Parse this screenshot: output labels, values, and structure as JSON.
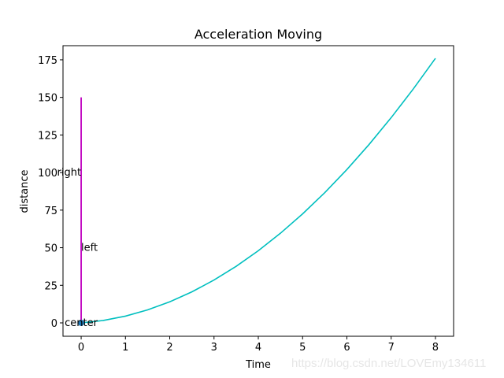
{
  "chart_data": {
    "type": "line",
    "title": "Acceleration Moving",
    "xlabel": "Time",
    "ylabel": "distance",
    "xlim": [
      -0.41,
      8.41
    ],
    "ylim": [
      -8.9,
      184.4
    ],
    "xticks": [
      0,
      1,
      2,
      3,
      4,
      5,
      6,
      7,
      8
    ],
    "yticks": [
      0,
      25,
      50,
      75,
      100,
      125,
      150,
      175
    ],
    "grid": false,
    "series": [
      {
        "color": "#00bfbf",
        "x": [
          0,
          0.5,
          1,
          1.5,
          2,
          2.5,
          3,
          3.5,
          4,
          4.5,
          5,
          5.5,
          6,
          6.5,
          7,
          7.5,
          8
        ],
        "y": [
          0,
          1.625,
          4.5,
          8.625,
          14,
          20.625,
          28.5,
          37.625,
          48,
          59.625,
          72.5,
          86.625,
          102,
          118.625,
          136.5,
          155.625,
          176
        ]
      }
    ],
    "vline": {
      "x": 0,
      "ymin": 0,
      "ymax": 150,
      "color": "#bf00bf"
    },
    "scatter": [
      {
        "x": 0,
        "y": 0,
        "color": "#1f77b4"
      }
    ],
    "annotations": [
      {
        "text": "center",
        "x": 0,
        "y": 0,
        "ha": "center"
      },
      {
        "text": "left",
        "x": 0,
        "y": 50,
        "ha": "left"
      },
      {
        "text": "right",
        "x": 0,
        "y": 100,
        "ha": "right"
      }
    ]
  },
  "watermark": "https://blog.csdn.net/LOVEmy134611"
}
